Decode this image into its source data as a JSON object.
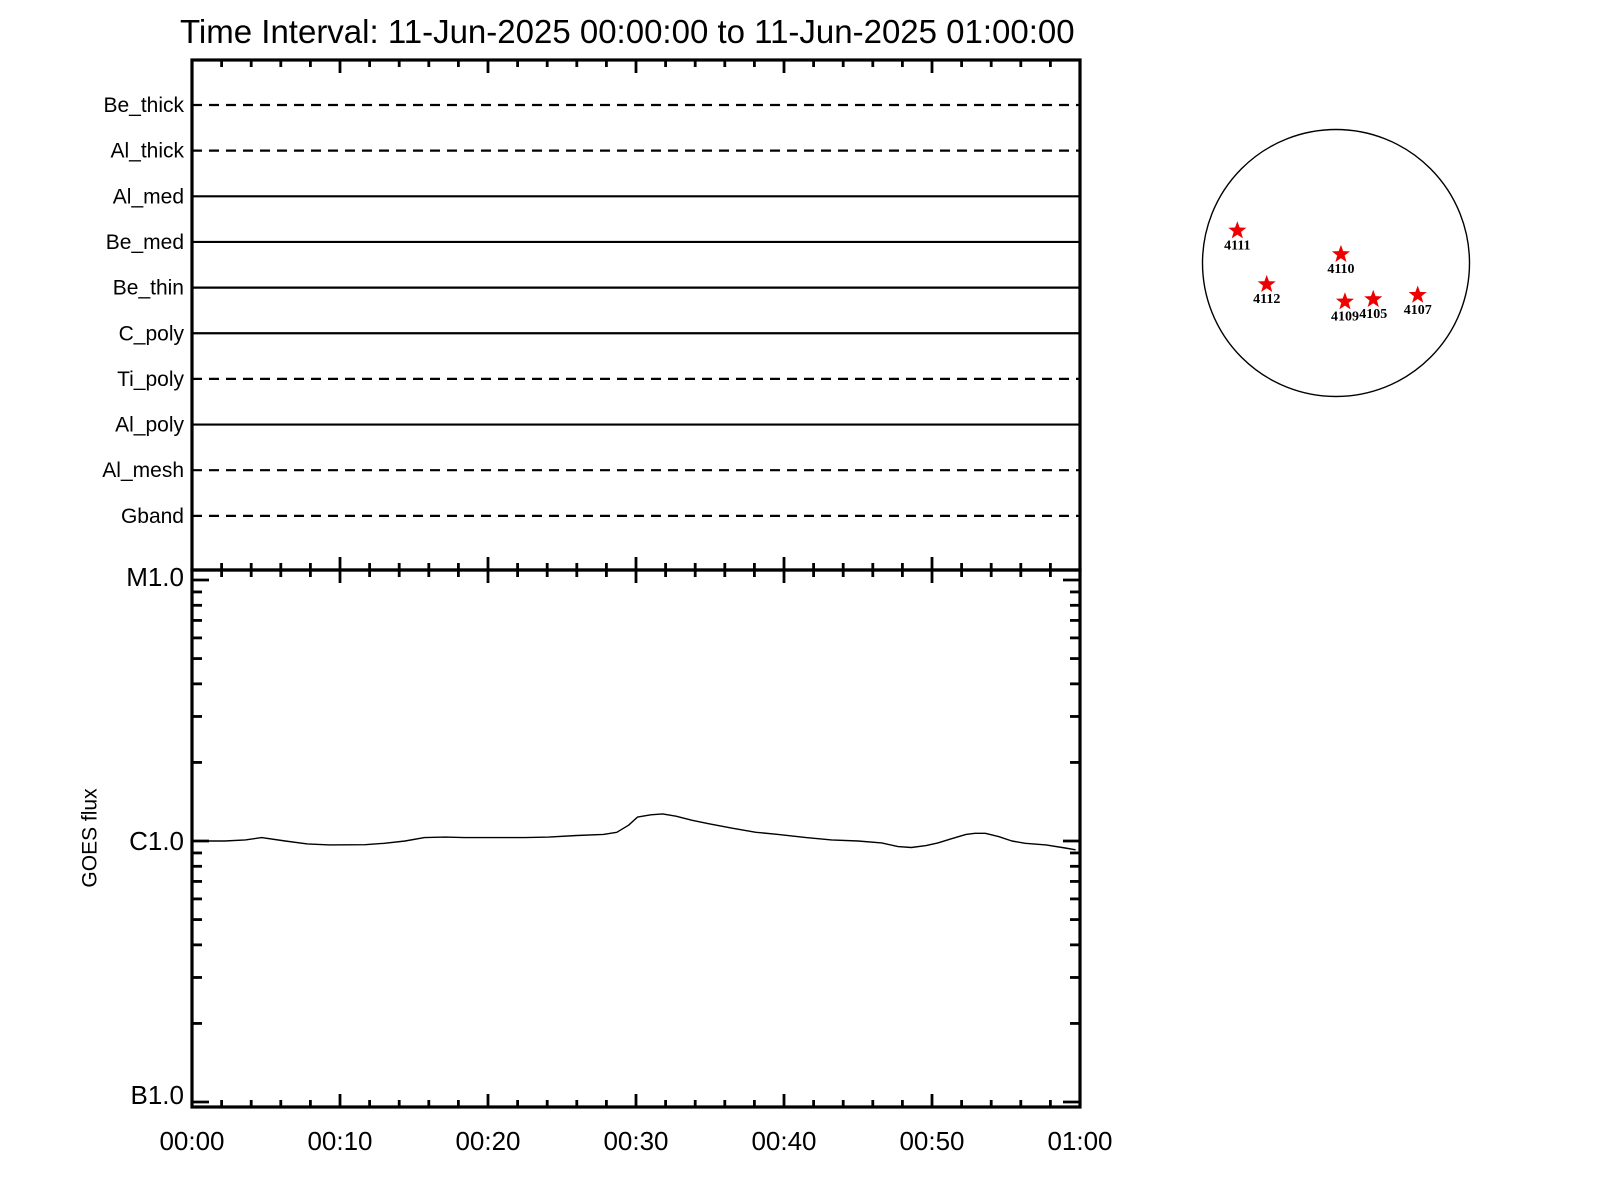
{
  "title": "Time Interval: 11-Jun-2025 00:00:00 to 11-Jun-2025 01:00:00",
  "colors": {
    "foreground": "#000000",
    "background": "#ffffff",
    "star": "#ee0000"
  },
  "chart_data": [
    {
      "type": "line",
      "panel": "xrt-filter-schedule",
      "categories": [
        {
          "label": "Be_thick",
          "line_style": "dashed"
        },
        {
          "label": "Al_thick",
          "line_style": "dashed"
        },
        {
          "label": "Al_med",
          "line_style": "solid"
        },
        {
          "label": "Be_med",
          "line_style": "solid"
        },
        {
          "label": "Be_thin",
          "line_style": "solid"
        },
        {
          "label": "C_poly",
          "line_style": "solid"
        },
        {
          "label": "Ti_poly",
          "line_style": "dashed"
        },
        {
          "label": "Al_poly",
          "line_style": "solid"
        },
        {
          "label": "Al_mesh",
          "line_style": "dashed"
        },
        {
          "label": "Gband",
          "line_style": "dashed"
        }
      ],
      "x_axis": {
        "range_minutes": [
          0,
          60
        ],
        "major_tick_minutes": 10,
        "minor_tick_minutes": 2
      },
      "grid": false,
      "legend": "none"
    },
    {
      "type": "line",
      "panel": "goes-flux",
      "ylabel": "GOES flux",
      "y_scale": "log",
      "y_ticks": [
        {
          "label": "M1.0",
          "flux_c1_units": 10
        },
        {
          "label": "C1.0",
          "flux_c1_units": 1
        },
        {
          "label": "B1.0",
          "flux_c1_units": 0.1
        }
      ],
      "x_tick_labels": [
        "00:00",
        "00:10",
        "00:20",
        "00:30",
        "00:40",
        "00:50",
        "01:00"
      ],
      "x_axis": {
        "range_minutes": [
          0,
          60
        ],
        "major_tick_minutes": 10,
        "minor_tick_minutes": 2
      },
      "grid": false,
      "series": [
        {
          "name": "GOES flux",
          "x_minutes": [
            0,
            2.2,
            3.6,
            4.7,
            6.3,
            7.8,
            9.3,
            11.7,
            13.0,
            14.4,
            15.7,
            17.1,
            18.4,
            20.8,
            22.5,
            24.1,
            26.0,
            27.8,
            28.7,
            29.5,
            30.1,
            31.0,
            31.8,
            32.7,
            33.8,
            34.9,
            36.5,
            38.1,
            39.6,
            41.5,
            43.2,
            45.0,
            46.6,
            47.7,
            48.6,
            49.6,
            50.4,
            51.3,
            52.3,
            52.9,
            53.6,
            54.5,
            55.4,
            56.3,
            57.7,
            59.0,
            59.7
          ],
          "flux_c1_units": [
            1.0,
            1.0,
            1.01,
            1.03,
            1.0,
            0.975,
            0.966,
            0.968,
            0.98,
            1.0,
            1.03,
            1.035,
            1.03,
            1.03,
            1.03,
            1.035,
            1.05,
            1.06,
            1.08,
            1.15,
            1.235,
            1.26,
            1.27,
            1.245,
            1.2,
            1.165,
            1.12,
            1.08,
            1.06,
            1.03,
            1.01,
            1.0,
            0.983,
            0.952,
            0.944,
            0.96,
            0.983,
            1.02,
            1.06,
            1.07,
            1.07,
            1.04,
            1.0,
            0.98,
            0.966,
            0.94,
            0.925
          ]
        }
      ]
    },
    {
      "type": "scatter",
      "panel": "solar-disk",
      "marker": "star",
      "points": [
        {
          "label": "4111",
          "x_r": -0.739,
          "y_r": -0.242
        },
        {
          "label": "4110",
          "x_r": 0.037,
          "y_r": -0.065
        },
        {
          "label": "4112",
          "x_r": -0.519,
          "y_r": 0.16
        },
        {
          "label": "4109",
          "x_r": 0.067,
          "y_r": 0.29
        },
        {
          "label": "4105",
          "x_r": 0.279,
          "y_r": 0.272
        },
        {
          "label": "4107",
          "x_r": 0.612,
          "y_r": 0.24
        }
      ]
    }
  ]
}
